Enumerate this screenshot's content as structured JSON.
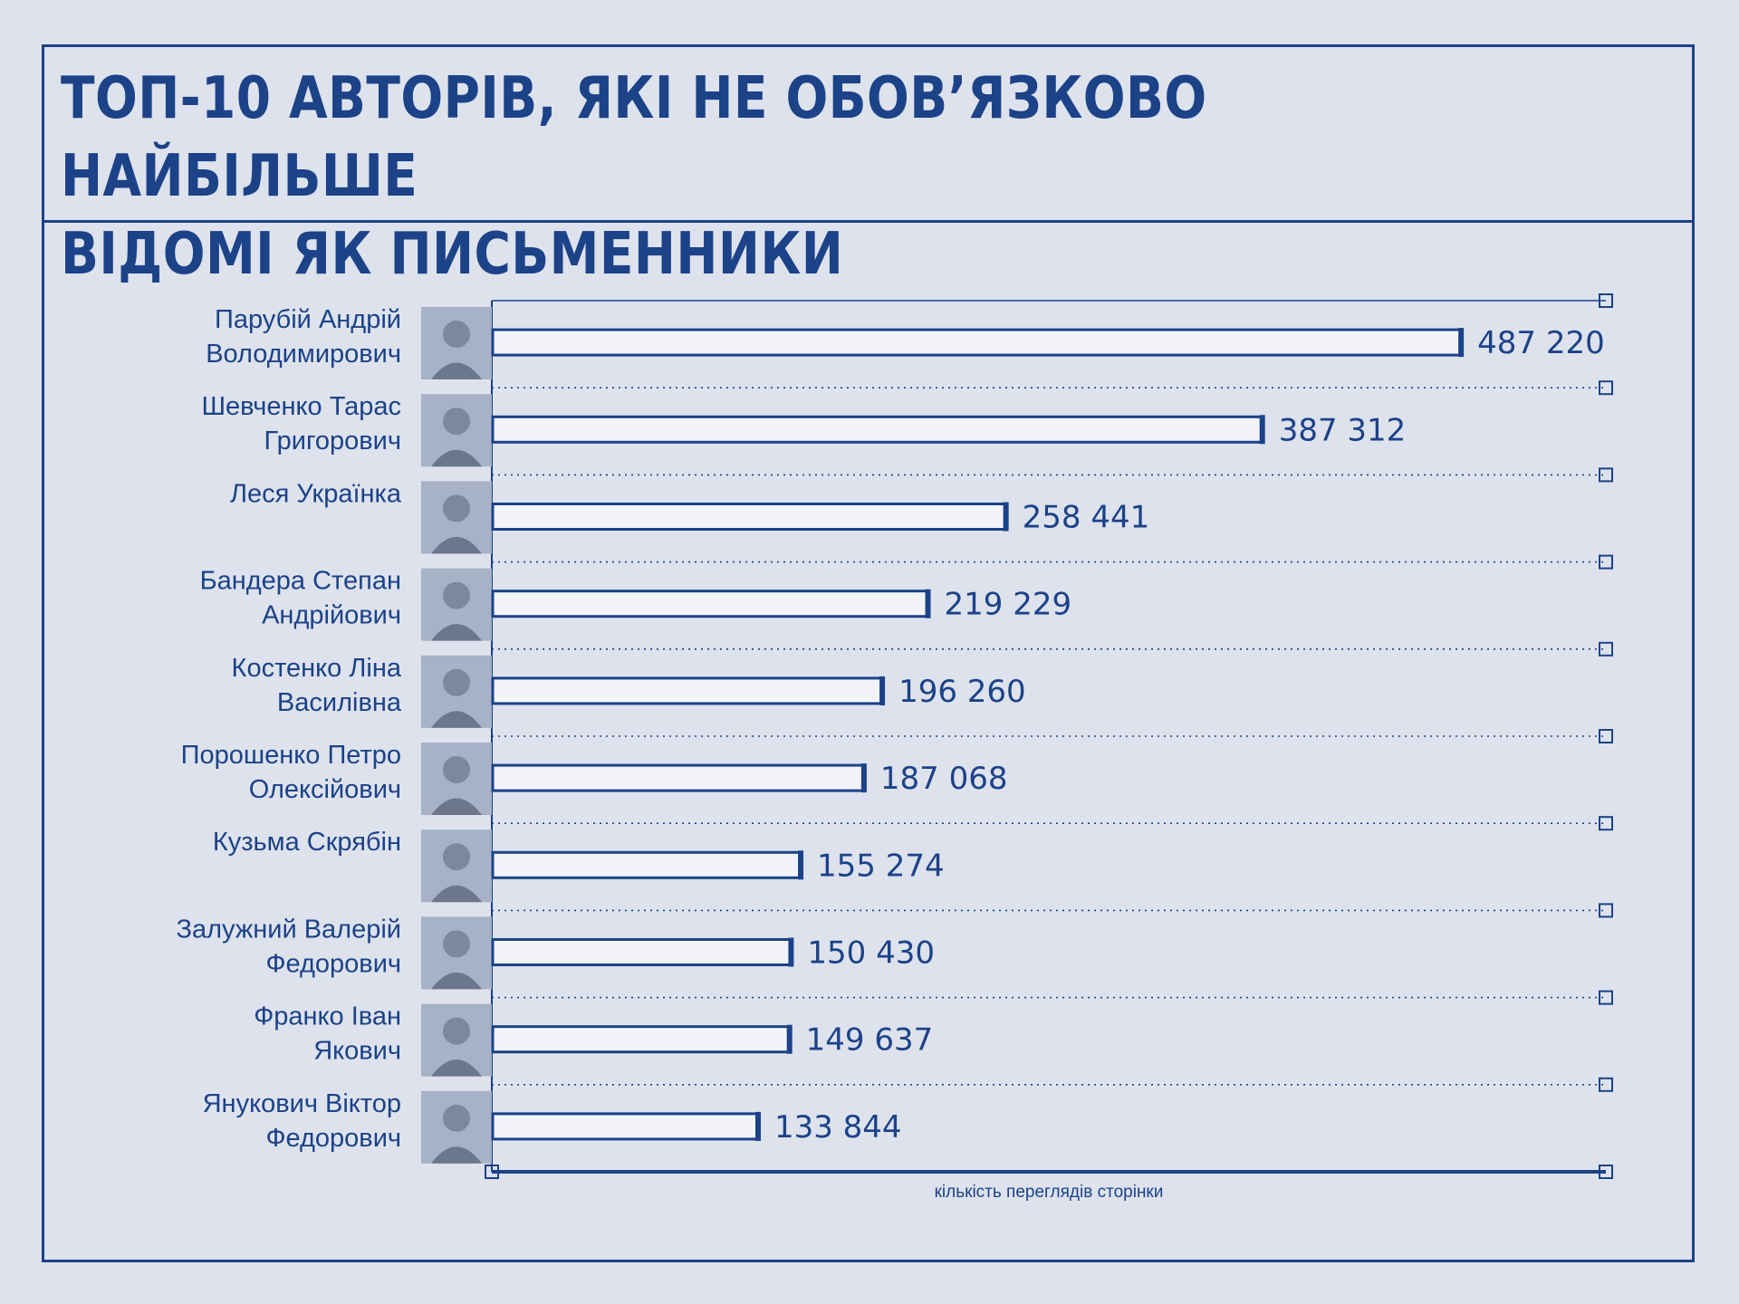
{
  "title": "ТОП-10 АВТОРІВ, ЯКІ НЕ ОБОВ’ЯЗКОВО НАЙБІЛЬШЕ\nВІДОМІ ЯК ПИСЬМЕННИКИ",
  "colors": {
    "background": "#dde2ec",
    "accent": "#1c4288",
    "bar_fill": "#f2f4f8"
  },
  "chart_data": {
    "type": "bar",
    "orientation": "horizontal",
    "xlabel": "кількість переглядів сторінки",
    "xlim": [
      0,
      560000
    ],
    "grid": true,
    "categories": [
      [
        "Парубій Андрій",
        "Володимирович"
      ],
      [
        "Шевченко Тарас",
        "Григорович"
      ],
      [
        "Леся Українка"
      ],
      [
        "Бандера Степан",
        "Андрійович"
      ],
      [
        "Костенко Ліна",
        "Василівна"
      ],
      [
        "Порошенко Петро",
        "Олексійович"
      ],
      [
        "Кузьма Скрябін"
      ],
      [
        "Залужний Валерій",
        "Федорович"
      ],
      [
        "Франко Іван",
        "Якович"
      ],
      [
        "Янукович Віктор",
        "Федорович"
      ]
    ],
    "values": [
      487220,
      387312,
      258441,
      219229,
      196260,
      187068,
      155274,
      150430,
      149637,
      133844
    ],
    "value_labels": [
      "487 220",
      "387 312",
      "258 441",
      "219 229",
      "196 260",
      "187 068",
      "155 274",
      "150 430",
      "149 637",
      "133 844"
    ]
  }
}
